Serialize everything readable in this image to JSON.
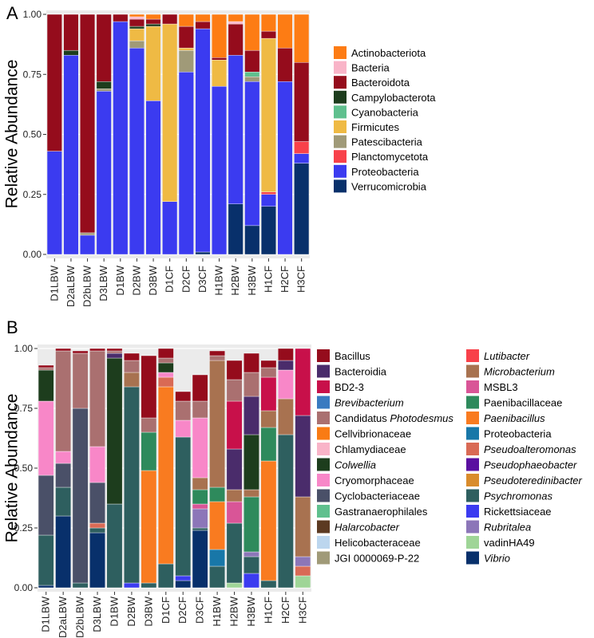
{
  "chart_data": [
    {
      "panel": "A",
      "type": "bar",
      "stacked": true,
      "ylabel": "Relative Abundance",
      "ylim": [
        0,
        1
      ],
      "yticks": [
        "0.00",
        "0.25",
        "0.50",
        "0.75",
        "1.00"
      ],
      "categories": [
        "D1LBW",
        "D2aLBW",
        "D2bLBW",
        "D3LBW",
        "D1BW",
        "D2BW",
        "D3BW",
        "D1CF",
        "D2CF",
        "D3CF",
        "H1BW",
        "H2BW",
        "H3BW",
        "H1CF",
        "H2CF",
        "H3CF"
      ],
      "legend_position": "right",
      "series": [
        {
          "name": "Verrucomicrobia",
          "color": "#08306b",
          "values": [
            0,
            0,
            0,
            0,
            0,
            0,
            0,
            0,
            0,
            0.01,
            0,
            0.21,
            0.12,
            0.2,
            0,
            0.38
          ]
        },
        {
          "name": "Proteobacteria",
          "color": "#3b3bf0",
          "values": [
            0.43,
            0.83,
            0.08,
            0.68,
            0.97,
            0.86,
            0.64,
            0.22,
            0.76,
            0.93,
            0.7,
            0.62,
            0.6,
            0.05,
            0.72,
            0.04
          ]
        },
        {
          "name": "Planctomycetota",
          "color": "#f8414a",
          "values": [
            0,
            0,
            0,
            0,
            0,
            0,
            0,
            0,
            0,
            0,
            0,
            0,
            0,
            0.01,
            0,
            0.05
          ]
        },
        {
          "name": "Patescibacteria",
          "color": "#a09a78",
          "values": [
            0,
            0,
            0.01,
            0.01,
            0,
            0.03,
            0,
            0,
            0.09,
            0,
            0,
            0,
            0.02,
            0,
            0,
            0
          ]
        },
        {
          "name": "Firmicutes",
          "color": "#efba44",
          "values": [
            0,
            0,
            0,
            0,
            0,
            0.05,
            0.31,
            0.74,
            0.01,
            0,
            0.11,
            0,
            0,
            0.64,
            0,
            0
          ]
        },
        {
          "name": "Cyanobacteria",
          "color": "#5fc08e",
          "values": [
            0,
            0,
            0,
            0,
            0,
            0,
            0,
            0,
            0,
            0,
            0,
            0,
            0.02,
            0,
            0,
            0
          ]
        },
        {
          "name": "Campylobacterota",
          "color": "#1d3d1d",
          "values": [
            0,
            0.02,
            0,
            0.03,
            0,
            0.01,
            0.01,
            0,
            0,
            0,
            0,
            0,
            0,
            0,
            0,
            0
          ]
        },
        {
          "name": "Bacteroidota",
          "color": "#950c1c",
          "values": [
            0.57,
            0.15,
            0.91,
            0.28,
            0.03,
            0.03,
            0.02,
            0.04,
            0.09,
            0.03,
            0.01,
            0.13,
            0.09,
            0.03,
            0.14,
            0.33
          ]
        },
        {
          "name": "Bacteria",
          "color": "#f9b4c8",
          "values": [
            0,
            0,
            0,
            0,
            0,
            0.01,
            0,
            0,
            0,
            0,
            0,
            0.01,
            0,
            0,
            0,
            0
          ]
        },
        {
          "name": "Actinobacteriota",
          "color": "#fd7c14",
          "values": [
            0,
            0,
            0,
            0,
            0,
            0.01,
            0.02,
            0,
            0.05,
            0.03,
            0.18,
            0.03,
            0.15,
            0.07,
            0.14,
            0.2
          ]
        }
      ],
      "legend": [
        "Actinobacteriota",
        "Bacteria",
        "Bacteroidota",
        "Campylobacterota",
        "Cyanobacteria",
        "Firmicutes",
        "Patescibacteria",
        "Planctomycetota",
        "Proteobacteria",
        "Verrucomicrobia"
      ]
    },
    {
      "panel": "B",
      "type": "bar",
      "stacked": true,
      "ylabel": "Relative Abundance",
      "ylim": [
        0,
        1
      ],
      "yticks": [
        "0.00",
        "0.25",
        "0.50",
        "0.75",
        "1.00"
      ],
      "categories": [
        "D1LBW",
        "D2aLBW",
        "D2bLBW",
        "D3LBW",
        "D1BW",
        "D2BW",
        "D3BW",
        "D1CF",
        "D2CF",
        "D3CF",
        "H1BW",
        "H2BW",
        "H3BW",
        "H1CF",
        "H2CF",
        "H3CF"
      ],
      "legend_position": "right",
      "series": [
        {
          "name": "Vibrio",
          "color": "#08306b",
          "values": [
            0.01,
            0.3,
            0,
            0.23,
            0,
            0,
            0,
            0,
            0.03,
            0.24,
            0,
            0,
            0,
            0,
            0,
            0
          ]
        },
        {
          "name": "Rickettsiaceae",
          "color": "#3b3bf0",
          "values": [
            0,
            0,
            0,
            0,
            0,
            0.02,
            0,
            0,
            0.02,
            0,
            0,
            0,
            0.06,
            0,
            0,
            0
          ]
        },
        {
          "name": "vadinHA49",
          "color": "#9fd597",
          "values": [
            0,
            0,
            0,
            0,
            0,
            0,
            0,
            0,
            0,
            0,
            0,
            0.02,
            0,
            0,
            0,
            0.05
          ]
        },
        {
          "name": "Psychromonas",
          "color": "#2e5f5f",
          "values": [
            0.21,
            0.12,
            0.02,
            0.02,
            0.35,
            0.82,
            0.02,
            0.1,
            0.58,
            0.01,
            0.09,
            0.25,
            0.07,
            0.03,
            0.64,
            0
          ]
        },
        {
          "name": "Proteobacteria",
          "color": "#1877a8",
          "values": [
            0,
            0,
            0,
            0,
            0,
            0,
            0,
            0,
            0,
            0,
            0.07,
            0,
            0,
            0,
            0,
            0
          ]
        },
        {
          "name": "Paenibacillus",
          "color": "#f97b20",
          "values": [
            0,
            0,
            0,
            0,
            0,
            0,
            0.47,
            0.74,
            0,
            0,
            0.2,
            0,
            0,
            0.5,
            0,
            0
          ]
        },
        {
          "name": "Pseudoalteromonas",
          "color": "#d96a55",
          "values": [
            0,
            0,
            0,
            0.02,
            0,
            0,
            0,
            0.04,
            0,
            0,
            0,
            0,
            0,
            0,
            0,
            0.04
          ]
        },
        {
          "name": "Rubritalea",
          "color": "#8c76b8",
          "values": [
            0,
            0,
            0,
            0,
            0,
            0,
            0,
            0,
            0,
            0.08,
            0,
            0,
            0.02,
            0,
            0,
            0.04
          ]
        },
        {
          "name": "MSBL3",
          "color": "#d95597",
          "values": [
            0,
            0,
            0,
            0,
            0,
            0,
            0,
            0,
            0,
            0.02,
            0,
            0.09,
            0,
            0,
            0,
            0
          ]
        },
        {
          "name": "Paenibacillaceae",
          "color": "#2e8a5c",
          "values": [
            0,
            0,
            0,
            0,
            0,
            0,
            0.16,
            0,
            0,
            0.06,
            0.06,
            0,
            0.23,
            0.14,
            0,
            0
          ]
        },
        {
          "name": "Microbacterium",
          "color": "#a87250",
          "values": [
            0,
            0,
            0,
            0,
            0,
            0.06,
            0,
            0,
            0,
            0.05,
            0.53,
            0.05,
            0.03,
            0.07,
            0.15,
            0.25
          ]
        },
        {
          "name": "Cyclobacteriaceae",
          "color": "#4a5068",
          "values": [
            0.25,
            0.1,
            0.73,
            0.17,
            0,
            0,
            0,
            0,
            0,
            0,
            0,
            0,
            0,
            0,
            0,
            0
          ]
        },
        {
          "name": "Cryomorphaceae",
          "color": "#f887c8",
          "values": [
            0.31,
            0.05,
            0,
            0.15,
            0,
            0,
            0,
            0.02,
            0.07,
            0.25,
            0,
            0,
            0,
            0,
            0.12,
            0
          ]
        },
        {
          "name": "Colwellia",
          "color": "#1d3d1d",
          "values": [
            0.13,
            0,
            0,
            0,
            0.61,
            0,
            0,
            0.04,
            0,
            0,
            0,
            0,
            0.23,
            0,
            0,
            0
          ]
        },
        {
          "name": "Bacteroidia",
          "color": "#4a2c6b",
          "values": [
            0,
            0,
            0,
            0,
            0.02,
            0,
            0,
            0,
            0,
            0,
            0,
            0.17,
            0.16,
            0,
            0.04,
            0.34
          ]
        },
        {
          "name": "BD2-3",
          "color": "#c8104a",
          "values": [
            0,
            0,
            0,
            0,
            0,
            0,
            0,
            0,
            0,
            0,
            0,
            0.2,
            0,
            0.14,
            0,
            0.28
          ]
        },
        {
          "name": "Candidatus Photodesmus",
          "color": "#aa7070",
          "values": [
            0.01,
            0.42,
            0.23,
            0.4,
            0.01,
            0.05,
            0.06,
            0.02,
            0.08,
            0.07,
            0.02,
            0.09,
            0.1,
            0.04,
            0,
            0
          ]
        },
        {
          "name": "Bacillus",
          "color": "#950c1c",
          "values": [
            0.01,
            0.01,
            0.01,
            0.01,
            0.01,
            0.03,
            0.26,
            0.04,
            0.04,
            0.11,
            0.02,
            0.08,
            0.08,
            0.03,
            0.05,
            0
          ]
        }
      ],
      "legend": [
        "Bacillus",
        "Bacteroidia",
        "BD2-3",
        "Brevibacterium",
        "Candidatus Photodesmus",
        "Cellvibrionaceae",
        "Chlamydiaceae",
        "Colwellia",
        "Cryomorphaceae",
        "Cyclobacteriaceae",
        "Gastranaerophilales",
        "Halarcobacter",
        "Helicobacteraceae",
        "JGI 0000069-P-22",
        "Lutibacter",
        "Microbacterium",
        "MSBL3",
        "Paenibacillaceae",
        "Paenibacillus",
        "Proteobacteria",
        "Pseudoalteromonas",
        "Pseudophaeobacter",
        "Pseudoteredinibacter",
        "Psychromonas",
        "Rickettsiaceae",
        "Rubritalea",
        "vadinHA49",
        "Vibrio"
      ],
      "legend_colors": {
        "Bacillus": "#950c1c",
        "Bacteroidia": "#4a2c6b",
        "BD2-3": "#c8104a",
        "Brevibacterium": "#3a7ac0",
        "Candidatus Photodesmus": "#aa7070",
        "Cellvibrionaceae": "#f97b14",
        "Chlamydiaceae": "#f9b4c8",
        "Colwellia": "#1d3d1d",
        "Cryomorphaceae": "#f887c8",
        "Cyclobacteriaceae": "#4a5068",
        "Gastranaerophilales": "#5fc08e",
        "Halarcobacter": "#5c3a22",
        "Helicobacteraceae": "#bcd6ee",
        "JGI 0000069-P-22": "#a09a78",
        "Lutibacter": "#f8414a",
        "Microbacterium": "#a87250",
        "MSBL3": "#d95597",
        "Paenibacillaceae": "#2e8a5c",
        "Paenibacillus": "#f97b20",
        "Proteobacteria": "#1877a8",
        "Pseudoalteromonas": "#d96a55",
        "Pseudophaeobacter": "#5a0fa0",
        "Pseudoteredinibacter": "#d98c2c",
        "Psychromonas": "#2e5f5f",
        "Rickettsiaceae": "#3b3bf0",
        "Rubritalea": "#8c76b8",
        "vadinHA49": "#9fd597",
        "Vibrio": "#08306b"
      },
      "italic_labels": [
        "Brevibacterium",
        "Colwellia",
        "Halarcobacter",
        "Lutibacter",
        "Microbacterium",
        "Paenibacillus",
        "Pseudoalteromonas",
        "Pseudophaeobacter",
        "Pseudoteredinibacter",
        "Psychromonas",
        "Rubritalea",
        "Vibrio"
      ]
    }
  ]
}
